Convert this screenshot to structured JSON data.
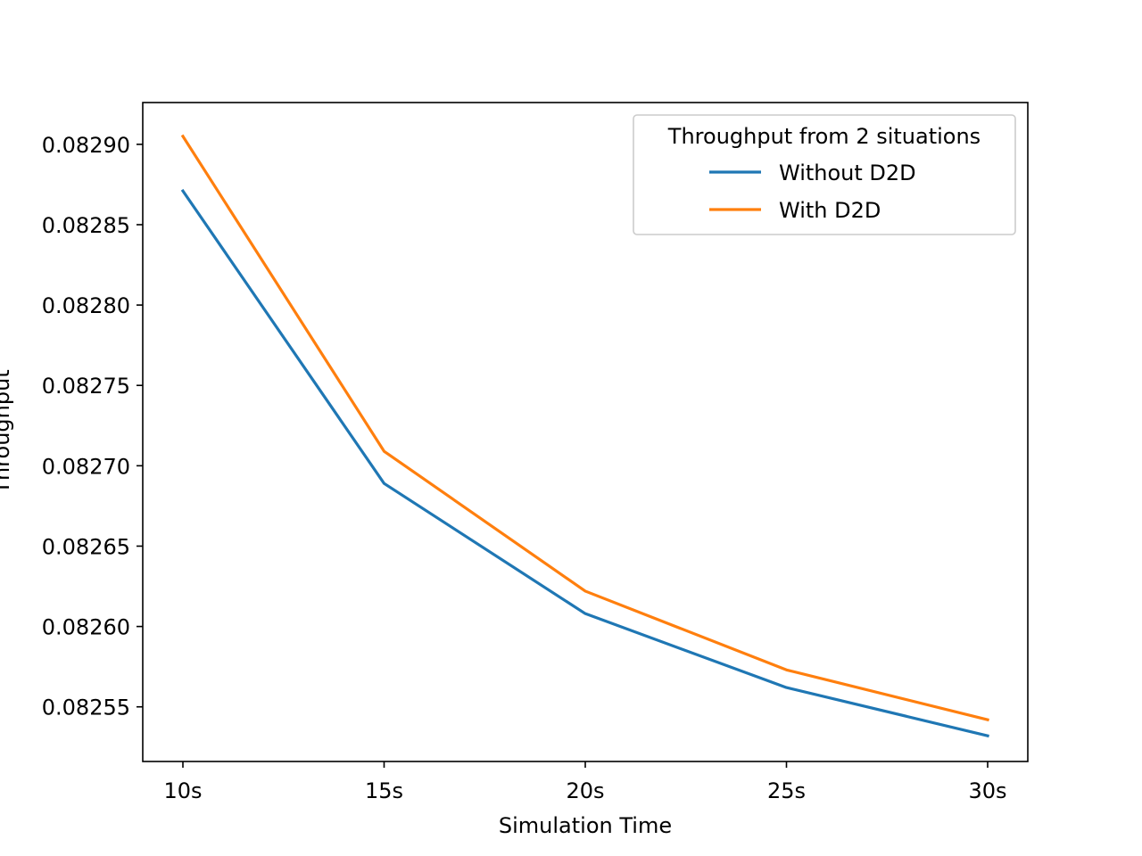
{
  "chart_data": {
    "type": "line",
    "title": "",
    "xlabel": "Simulation Time",
    "ylabel": "Throughput",
    "categories": [
      "10s",
      "15s",
      "20s",
      "25s",
      "30s"
    ],
    "yticks": [
      "0.08255",
      "0.08260",
      "0.08265",
      "0.08270",
      "0.08275",
      "0.08280",
      "0.08285",
      "0.08290"
    ],
    "ytick_values": [
      0.08255,
      0.0826,
      0.08265,
      0.0827,
      0.08275,
      0.0828,
      0.08285,
      0.0829
    ],
    "ylim": [
      0.082516,
      0.082926
    ],
    "grid": false,
    "legend": {
      "title": "Throughput from 2 situations",
      "placement": "top-right"
    },
    "series": [
      {
        "name": "Without D2D",
        "color": "#1f77b4",
        "values": [
          0.082871,
          0.082689,
          0.082608,
          0.082562,
          0.082532
        ]
      },
      {
        "name": "With D2D",
        "color": "#ff7f0e",
        "values": [
          0.082905,
          0.082709,
          0.082622,
          0.082573,
          0.082542
        ]
      }
    ]
  }
}
